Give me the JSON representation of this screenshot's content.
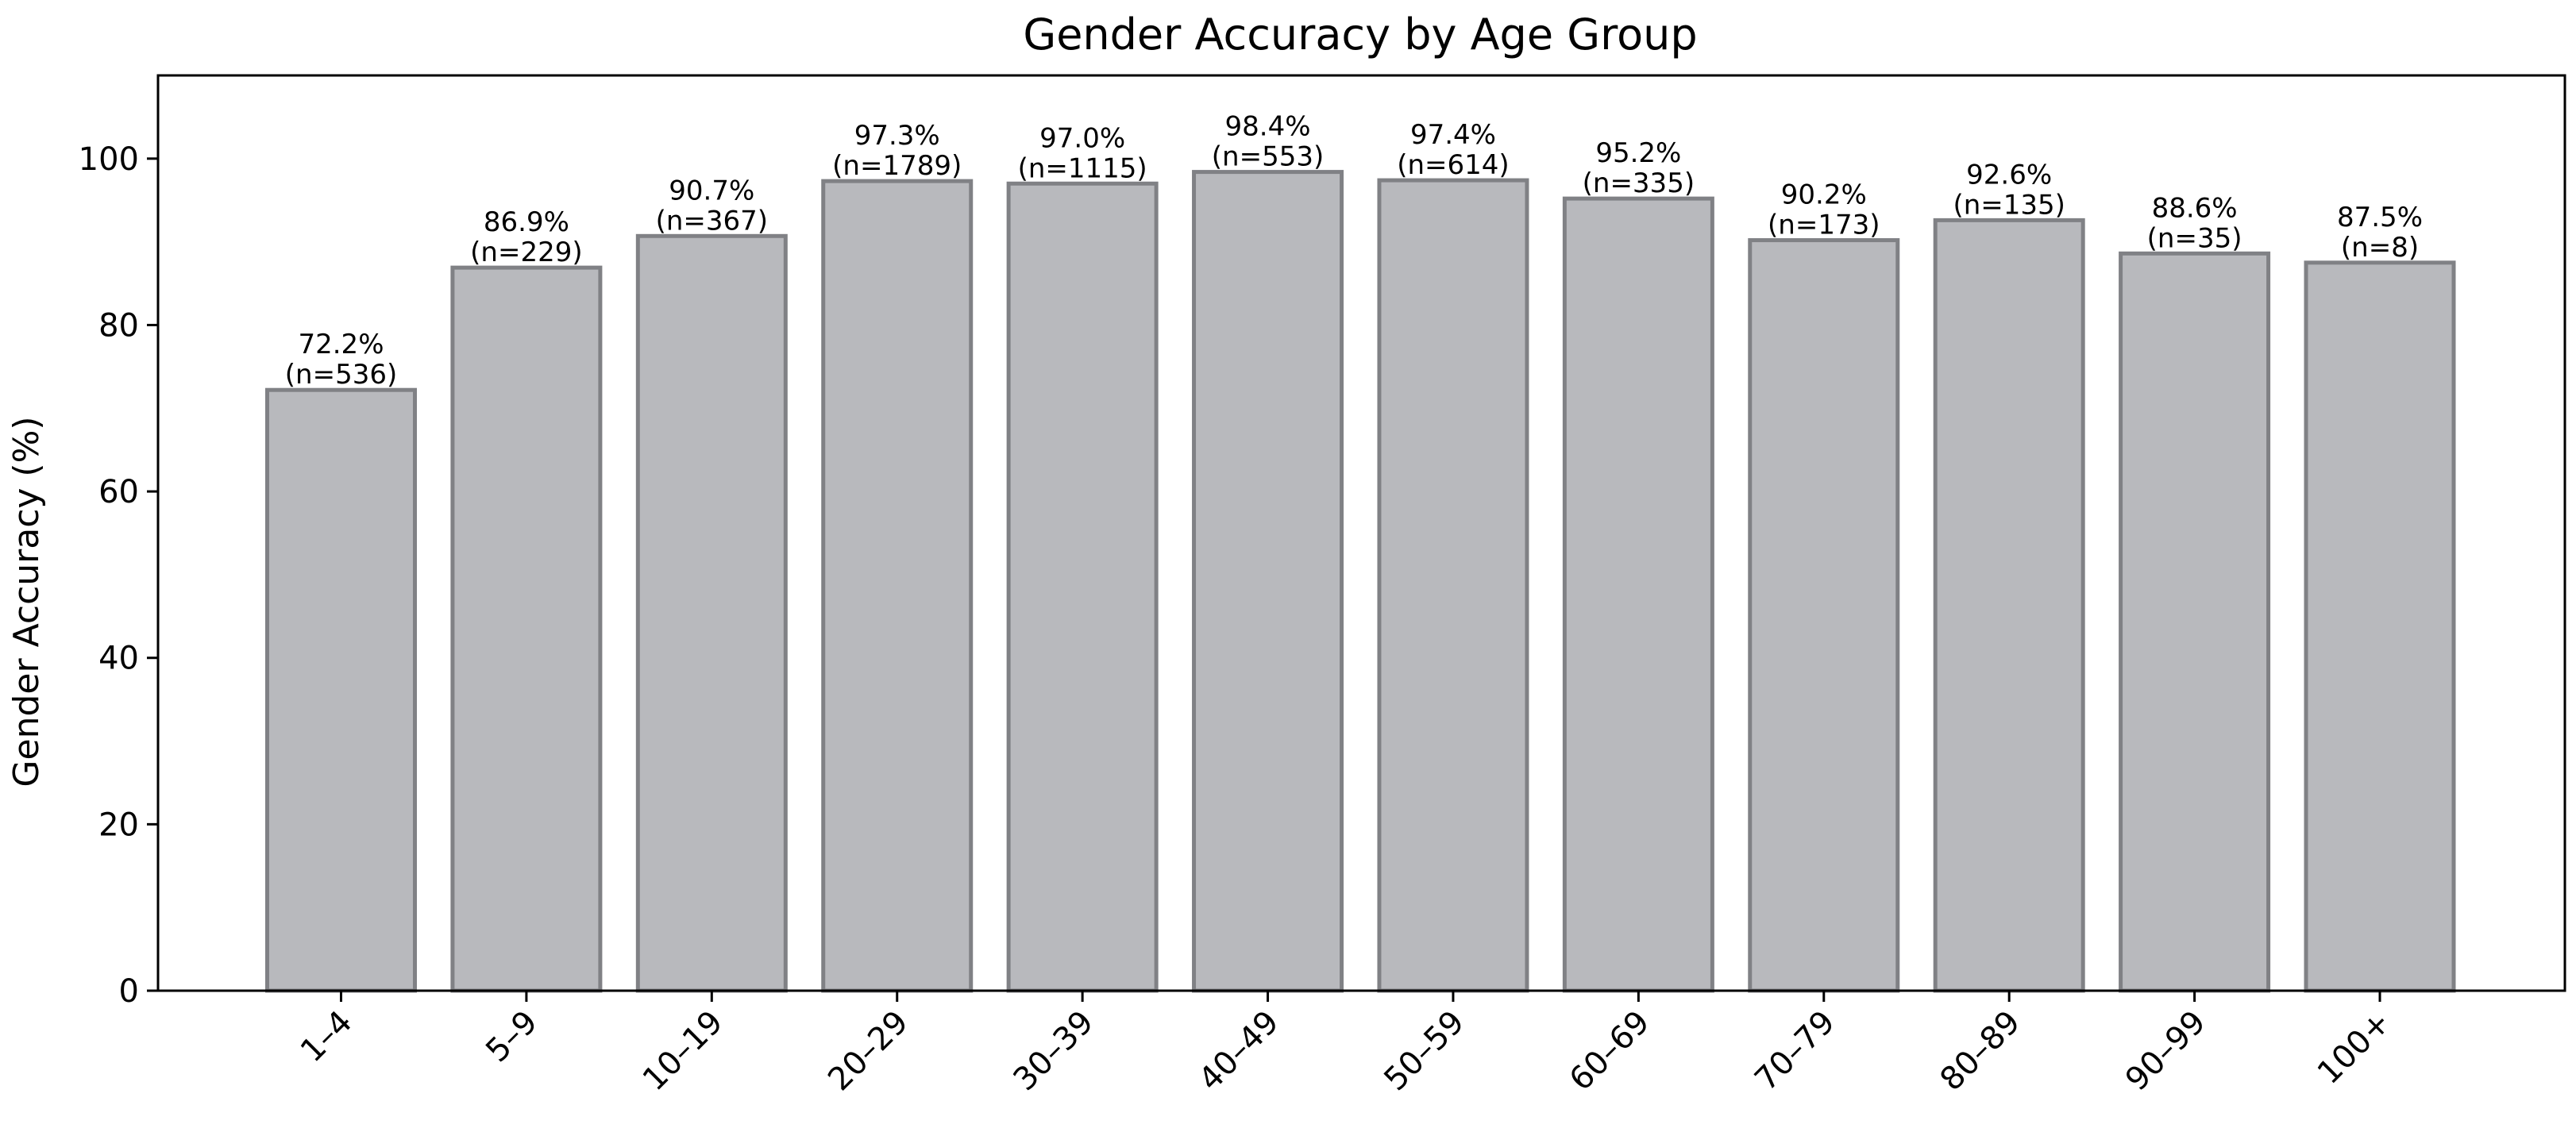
{
  "chart_data": {
    "type": "bar",
    "title": "Gender Accuracy by Age Group",
    "xlabel": "",
    "ylabel": "Gender Accuracy (%)",
    "ylim": [
      0,
      110
    ],
    "yticks": [
      0,
      20,
      40,
      60,
      80,
      100
    ],
    "grid": false,
    "legend": "none",
    "categories": [
      "1–4",
      "5–9",
      "10–19",
      "20–29",
      "30–39",
      "40–49",
      "50–59",
      "60–69",
      "70–79",
      "80–89",
      "90–99",
      "100+"
    ],
    "values": [
      72.2,
      86.9,
      90.7,
      97.3,
      97.0,
      98.4,
      97.4,
      95.2,
      90.2,
      92.6,
      88.6,
      87.5
    ],
    "value_labels": [
      "72.2%",
      "86.9%",
      "90.7%",
      "97.3%",
      "97.0%",
      "98.4%",
      "97.4%",
      "95.2%",
      "90.2%",
      "92.6%",
      "88.6%",
      "87.5%"
    ],
    "n_labels": [
      "(n=536)",
      "(n=229)",
      "(n=367)",
      "(n=1789)",
      "(n=1115)",
      "(n=553)",
      "(n=614)",
      "(n=335)",
      "(n=173)",
      "(n=135)",
      "(n=35)",
      "(n=8)"
    ],
    "colors": {
      "bar_fill": "#b8b9bd",
      "bar_edge": "#808185",
      "axis": "#000000"
    }
  }
}
